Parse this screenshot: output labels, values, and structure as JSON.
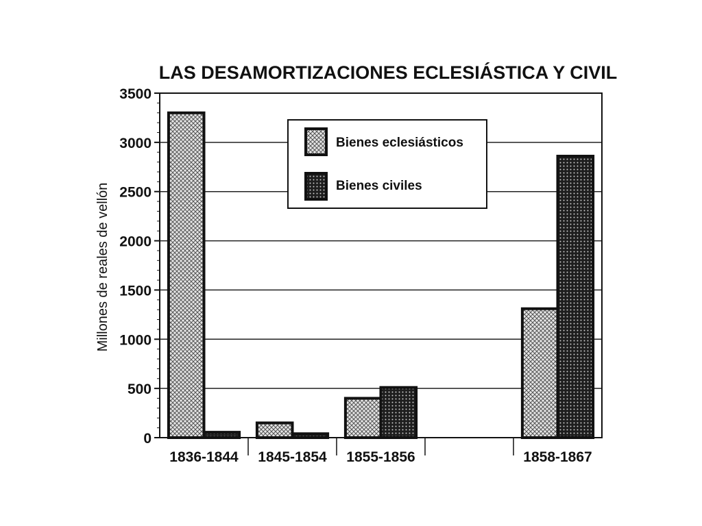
{
  "chart_data": {
    "type": "bar",
    "title": "LAS DESAMORTIZACIONES ECLESIÁSTICA Y CIVIL",
    "ylabel": "Millones de reales de vellón",
    "xlabel": "",
    "ylim": [
      0,
      3500
    ],
    "yticks": [
      0,
      500,
      1000,
      1500,
      2000,
      2500,
      3000,
      3500
    ],
    "categories": [
      "1836-1844",
      "1845-1854",
      "1855-1856",
      "",
      "1858-1867"
    ],
    "series": [
      {
        "name": "Bienes eclesiásticos",
        "values": [
          3300,
          150,
          400,
          null,
          1310
        ],
        "color": "#bdbdbd"
      },
      {
        "name": "Bienes civiles",
        "values": [
          55,
          40,
          510,
          null,
          2860
        ],
        "color": "#2a2a2a"
      }
    ],
    "grid": true,
    "legend_position": "top-center"
  }
}
